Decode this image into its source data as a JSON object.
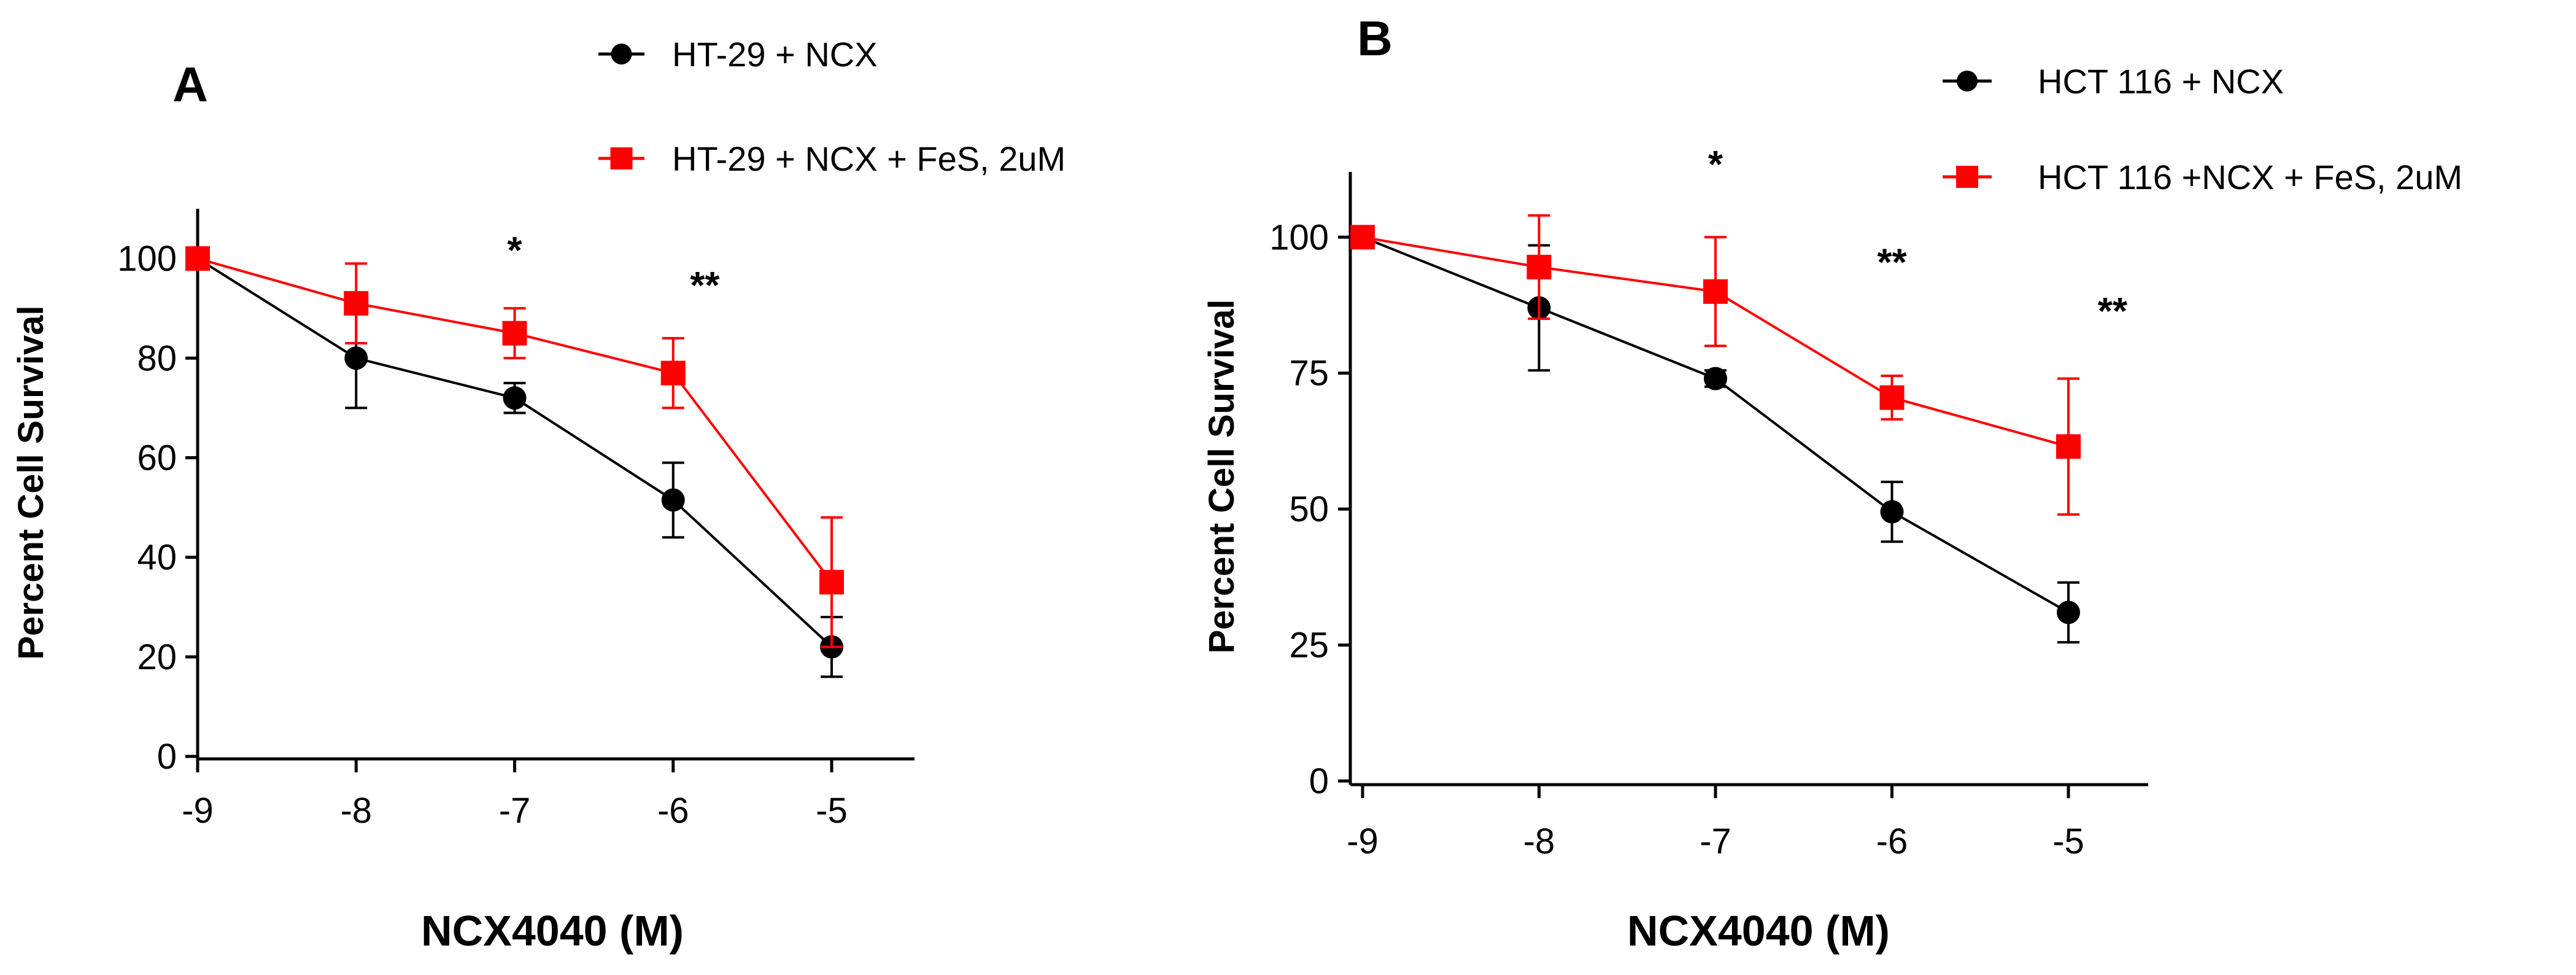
{
  "chart_data": [
    {
      "panel": "A",
      "type": "line",
      "xlabel": "NCX4040 (M)",
      "ylabel": "Percent Cell Survival",
      "x": [
        -9,
        -8,
        -7,
        -6,
        -5
      ],
      "xticks": [
        "-9",
        "-8",
        "-7",
        "-6",
        "-5"
      ],
      "yticks": [
        "0",
        "20",
        "40",
        "60",
        "80",
        "100"
      ],
      "ylim": [
        0,
        110
      ],
      "series": [
        {
          "name": "HT-29 + NCX",
          "color": "#000000",
          "marker": "circle",
          "values": [
            100,
            80,
            72,
            51.5,
            22
          ],
          "errors": [
            1,
            10,
            3,
            7.5,
            6
          ]
        },
        {
          "name": "HT-29 + NCX + FeS, 2uM",
          "color": "#ff0000",
          "marker": "square",
          "values": [
            100,
            91,
            85,
            77,
            35
          ],
          "errors": [
            1,
            8,
            5,
            7,
            13
          ]
        }
      ],
      "annotations": [
        {
          "text": "*",
          "x": -7,
          "y": 99
        },
        {
          "text": "**",
          "x": -5.8,
          "y": 92
        }
      ]
    },
    {
      "panel": "B",
      "type": "line",
      "xlabel": "NCX4040 (M)",
      "ylabel": "Percent Cell Survival",
      "x": [
        -9,
        -8,
        -7,
        -6,
        -5
      ],
      "xticks": [
        "-9",
        "-8",
        "-7",
        "-6",
        "-5"
      ],
      "yticks": [
        "0",
        "25",
        "50",
        "75",
        "100"
      ],
      "ylim": [
        0,
        112
      ],
      "series": [
        {
          "name": "HCT 116 + NCX",
          "color": "#000000",
          "marker": "circle",
          "values": [
            100,
            87,
            74,
            49.5,
            31
          ],
          "errors": [
            1,
            11.5,
            1.5,
            5.5,
            5.5
          ]
        },
        {
          "name": "HCT 116 +NCX + FeS, 2uM",
          "color": "#ff0000",
          "marker": "square",
          "values": [
            100,
            94.5,
            90,
            70.5,
            61.5
          ],
          "errors": [
            1,
            9.5,
            10,
            4,
            12.5
          ]
        }
      ],
      "annotations": [
        {
          "text": "*",
          "x": -7,
          "y": 111
        },
        {
          "text": "**",
          "x": -6,
          "y": 93
        },
        {
          "text": "**",
          "x": -4.75,
          "y": 84
        }
      ]
    }
  ],
  "panels": {
    "a": {
      "label": "A"
    },
    "b": {
      "label": "B"
    }
  }
}
